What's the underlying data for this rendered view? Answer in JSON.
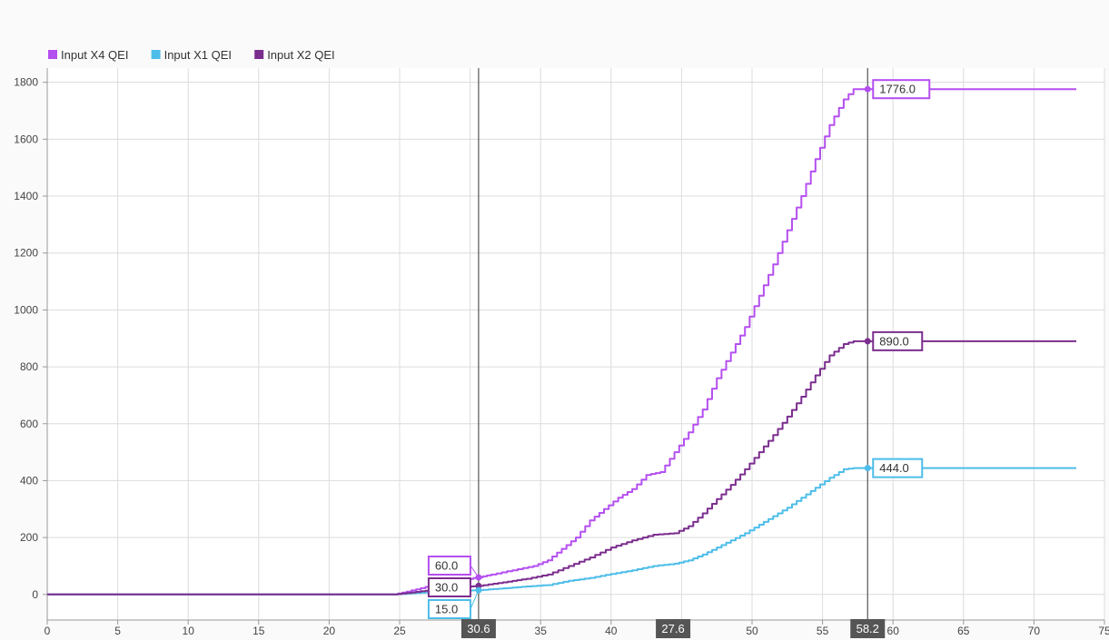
{
  "chart_data": {
    "type": "line",
    "title": "",
    "xlabel": "",
    "ylabel": "",
    "xlim": [
      0,
      75
    ],
    "ylim": [
      -90,
      1850
    ],
    "grid": true,
    "legend_placement": "top-left",
    "x_ticks": [
      0,
      5,
      10,
      15,
      20,
      25,
      30,
      35,
      40,
      45,
      50,
      55,
      60,
      65,
      70,
      75
    ],
    "y_ticks": [
      0,
      200,
      400,
      600,
      800,
      1000,
      1200,
      1400,
      1600,
      1800
    ],
    "series": [
      {
        "name": "Input X4 QEI",
        "color": "#b44ff0",
        "x": [
          0,
          24.6,
          25.5,
          26.5,
          27.5,
          28.5,
          29.5,
          30.6,
          31.5,
          33,
          34.5,
          35.5,
          36.5,
          37.5,
          38.5,
          39.5,
          40.5,
          41.5,
          42.5,
          43.5,
          44.5,
          45.5,
          46.5,
          47.5,
          48.5,
          49.5,
          50.5,
          51.5,
          52.5,
          53.5,
          54.5,
          55.5,
          56.5,
          57.2,
          58.2,
          73
        ],
        "values": [
          0,
          0,
          10,
          22,
          35,
          45,
          52,
          60,
          70,
          85,
          100,
          120,
          160,
          200,
          260,
          300,
          340,
          370,
          420,
          430,
          500,
          570,
          650,
          760,
          850,
          940,
          1050,
          1160,
          1280,
          1400,
          1530,
          1650,
          1740,
          1776,
          1776,
          1776
        ]
      },
      {
        "name": "Input X1 QEI",
        "color": "#4dbde9",
        "x": [
          0,
          24.6,
          25.5,
          26.5,
          27.5,
          28.5,
          29.5,
          30.6,
          32,
          34,
          35.5,
          37,
          38.5,
          40,
          41.5,
          43,
          44.5,
          45.5,
          46.5,
          47.5,
          48.5,
          49.5,
          50.5,
          51.5,
          52.5,
          53.5,
          54.5,
          55.5,
          56.5,
          57.2,
          58.2,
          73
        ],
        "values": [
          0,
          0,
          3,
          6,
          9,
          11,
          13,
          15,
          20,
          28,
          33,
          48,
          58,
          72,
          85,
          100,
          108,
          120,
          140,
          165,
          190,
          215,
          245,
          275,
          305,
          340,
          375,
          410,
          440,
          444,
          444,
          444
        ]
      },
      {
        "name": "Input X2 QEI",
        "color": "#7b2d8e",
        "x": [
          0,
          24.6,
          25.5,
          26.5,
          27.5,
          28.5,
          29.5,
          30.6,
          32,
          34,
          35.5,
          37,
          38.5,
          40,
          41.5,
          43,
          44.5,
          45.5,
          46.5,
          47.5,
          48.5,
          49.5,
          50.5,
          51.5,
          52.5,
          53.5,
          54.5,
          55.5,
          56.5,
          57.2,
          58.2,
          73
        ],
        "values": [
          0,
          0,
          5,
          11,
          17,
          23,
          27,
          30,
          40,
          55,
          70,
          100,
          130,
          165,
          190,
          210,
          215,
          240,
          285,
          335,
          385,
          440,
          500,
          560,
          625,
          695,
          770,
          840,
          880,
          890,
          890,
          890
        ]
      }
    ],
    "cursors": [
      {
        "x": 30.6,
        "label": "30.6"
      },
      {
        "x": 58.2,
        "label": "58.2"
      }
    ],
    "cursor_delta": {
      "x": 44.4,
      "label": "27.6"
    },
    "annotations": [
      {
        "series": "Input X4 QEI",
        "x": 30.6,
        "y": 60,
        "label": "60.0",
        "side": "left"
      },
      {
        "series": "Input X2 QEI",
        "x": 30.6,
        "y": 30,
        "label": "30.0",
        "side": "left"
      },
      {
        "series": "Input X1 QEI",
        "x": 30.6,
        "y": 15,
        "label": "15.0",
        "side": "left"
      },
      {
        "series": "Input X4 QEI",
        "x": 58.2,
        "y": 1776,
        "label": "1776.0",
        "side": "right"
      },
      {
        "series": "Input X2 QEI",
        "x": 58.2,
        "y": 890,
        "label": "890.0",
        "side": "right"
      },
      {
        "series": "Input X1 QEI",
        "x": 58.2,
        "y": 444,
        "label": "444.0",
        "side": "right"
      }
    ]
  }
}
